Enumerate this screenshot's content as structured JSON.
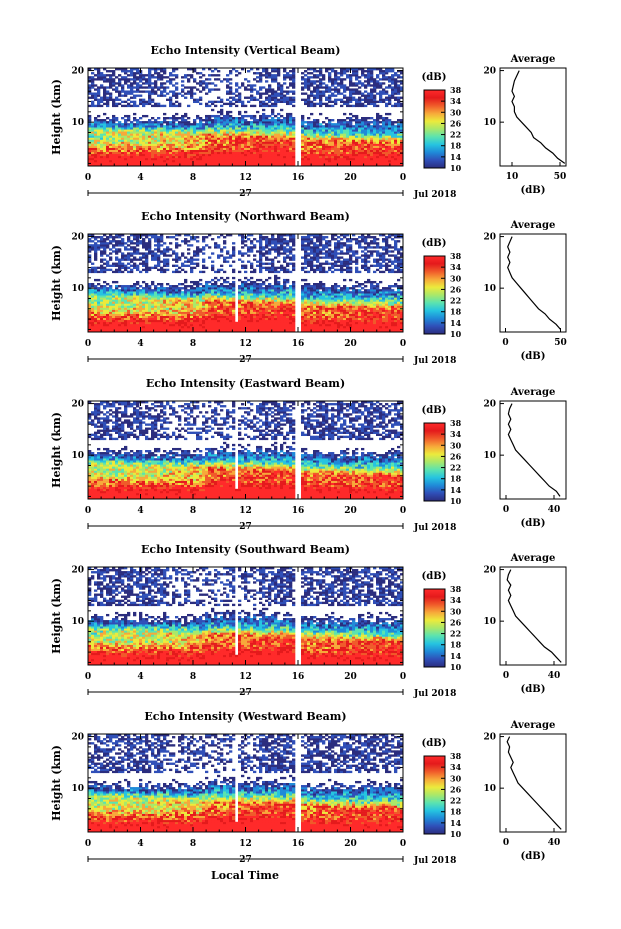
{
  "figure": {
    "xlabel": "Local Time",
    "date_label": "Jul 2018",
    "day_label": "27",
    "colorbar_unit": "(dB)",
    "avg_title": "Average",
    "avg_xlabel": "(dB)"
  },
  "colors": {
    "colormap": [
      "#2b2d7e",
      "#2f4fb8",
      "#1f8ad8",
      "#26c4e0",
      "#5be3b0",
      "#a9e86a",
      "#ecea3c",
      "#f7a83a",
      "#f05a2a",
      "#e41a1c",
      "#ff2a2a"
    ],
    "background": "#ffffff"
  },
  "chart_data": [
    {
      "type": "heatmap",
      "title": "Echo Intensity (Vertical Beam)",
      "ylabel": "Height (km)",
      "xlabel": "Local Time",
      "x_ticks": [
        "0",
        "4",
        "8",
        "12",
        "16",
        "20",
        "0"
      ],
      "xlim": [
        0,
        24
      ],
      "y_ticks": [
        "10",
        "20"
      ],
      "ylim": [
        1.5,
        20.5
      ],
      "colorbar_ticks": [
        "10",
        "14",
        "18",
        "22",
        "26",
        "30",
        "34",
        "38"
      ],
      "colorbar_range": [
        10,
        38
      ],
      "gaps_hours": [
        16.0
      ],
      "average_profile": {
        "title": "Average",
        "xlabel": "(dB)",
        "x_ticks": [
          "10",
          "50"
        ],
        "x_tick_values": [
          10,
          50
        ],
        "xlim": [
          0,
          55
        ],
        "y_ticks": [
          "10",
          "20"
        ],
        "heights_km": [
          2,
          3,
          4,
          5,
          6,
          7,
          8,
          9,
          10,
          11,
          12,
          13,
          14,
          15,
          16,
          17,
          18,
          19,
          20
        ],
        "values_db": [
          54,
          48,
          44,
          38,
          34,
          28,
          26,
          22,
          18,
          14,
          12,
          12,
          10,
          12,
          10,
          11,
          12,
          14,
          16
        ]
      }
    },
    {
      "type": "heatmap",
      "title": "Echo Intensity (Northward Beam)",
      "ylabel": "Height (km)",
      "xlabel": "Local Time",
      "x_ticks": [
        "0",
        "4",
        "8",
        "12",
        "16",
        "20",
        "0"
      ],
      "xlim": [
        0,
        24
      ],
      "y_ticks": [
        "10",
        "20"
      ],
      "ylim": [
        1.5,
        20.5
      ],
      "colorbar_ticks": [
        "10",
        "14",
        "18",
        "22",
        "26",
        "30",
        "34",
        "38"
      ],
      "colorbar_range": [
        10,
        38
      ],
      "gaps_hours": [
        11.3,
        16.0
      ],
      "average_profile": {
        "title": "Average",
        "xlabel": "(dB)",
        "x_ticks": [
          "0",
          "50"
        ],
        "x_tick_values": [
          0,
          50
        ],
        "xlim": [
          -5,
          55
        ],
        "y_ticks": [
          "10",
          "20"
        ],
        "heights_km": [
          2,
          3,
          4,
          5,
          6,
          7,
          8,
          9,
          10,
          11,
          12,
          13,
          14,
          15,
          16,
          17,
          18,
          19,
          20
        ],
        "values_db": [
          50,
          46,
          40,
          36,
          30,
          26,
          22,
          18,
          14,
          10,
          6,
          4,
          2,
          4,
          2,
          4,
          2,
          4,
          6
        ]
      }
    },
    {
      "type": "heatmap",
      "title": "Echo Intensity (Eastward Beam)",
      "ylabel": "Height (km)",
      "xlabel": "Local Time",
      "x_ticks": [
        "0",
        "4",
        "8",
        "12",
        "16",
        "20",
        "0"
      ],
      "xlim": [
        0,
        24
      ],
      "y_ticks": [
        "10",
        "20"
      ],
      "ylim": [
        1.5,
        20.5
      ],
      "colorbar_ticks": [
        "10",
        "14",
        "18",
        "22",
        "26",
        "30",
        "34",
        "38"
      ],
      "colorbar_range": [
        10,
        38
      ],
      "gaps_hours": [
        11.3,
        16.0
      ],
      "average_profile": {
        "title": "Average",
        "xlabel": "(dB)",
        "x_ticks": [
          "0",
          "40"
        ],
        "x_tick_values": [
          0,
          40
        ],
        "xlim": [
          -5,
          50
        ],
        "y_ticks": [
          "10",
          "20"
        ],
        "heights_km": [
          2,
          3,
          4,
          5,
          6,
          7,
          8,
          9,
          10,
          11,
          12,
          13,
          14,
          15,
          16,
          17,
          18,
          19,
          20
        ],
        "values_db": [
          45,
          42,
          36,
          32,
          28,
          24,
          20,
          16,
          12,
          8,
          6,
          4,
          2,
          4,
          2,
          4,
          2,
          3,
          5
        ]
      }
    },
    {
      "type": "heatmap",
      "title": "Echo Intensity (Southward Beam)",
      "ylabel": "Height (km)",
      "xlabel": "Local Time",
      "x_ticks": [
        "0",
        "4",
        "8",
        "12",
        "16",
        "20",
        "0"
      ],
      "xlim": [
        0,
        24
      ],
      "y_ticks": [
        "10",
        "20"
      ],
      "ylim": [
        1.5,
        20.5
      ],
      "colorbar_ticks": [
        "10",
        "14",
        "18",
        "22",
        "26",
        "30",
        "34",
        "38"
      ],
      "colorbar_range": [
        10,
        38
      ],
      "gaps_hours": [
        11.3,
        16.0
      ],
      "average_profile": {
        "title": "Average",
        "xlabel": "(dB)",
        "x_ticks": [
          "0",
          "40"
        ],
        "x_tick_values": [
          0,
          40
        ],
        "xlim": [
          -5,
          50
        ],
        "y_ticks": [
          "10",
          "20"
        ],
        "heights_km": [
          2,
          3,
          4,
          5,
          6,
          7,
          8,
          9,
          10,
          11,
          12,
          13,
          14,
          15,
          16,
          17,
          18,
          19,
          20
        ],
        "values_db": [
          46,
          42,
          38,
          32,
          28,
          24,
          20,
          16,
          12,
          8,
          6,
          4,
          2,
          4,
          2,
          4,
          1,
          2,
          4
        ]
      }
    },
    {
      "type": "heatmap",
      "title": "Echo Intensity (Westward Beam)",
      "ylabel": "Height (km)",
      "xlabel": "Local Time",
      "x_ticks": [
        "0",
        "4",
        "8",
        "12",
        "16",
        "20",
        "0"
      ],
      "xlim": [
        0,
        24
      ],
      "y_ticks": [
        "10",
        "20"
      ],
      "ylim": [
        1.5,
        20.5
      ],
      "colorbar_ticks": [
        "10",
        "14",
        "18",
        "22",
        "26",
        "30",
        "34",
        "38"
      ],
      "colorbar_range": [
        10,
        38
      ],
      "gaps_hours": [
        11.3,
        16.0
      ],
      "average_profile": {
        "title": "Average",
        "xlabel": "(dB)",
        "x_ticks": [
          "0",
          "40"
        ],
        "x_tick_values": [
          0,
          40
        ],
        "xlim": [
          -5,
          50
        ],
        "y_ticks": [
          "10",
          "20"
        ],
        "heights_km": [
          2,
          3,
          4,
          5,
          6,
          7,
          8,
          9,
          10,
          11,
          12,
          13,
          14,
          15,
          16,
          17,
          18,
          19,
          20
        ],
        "values_db": [
          46,
          42,
          38,
          34,
          30,
          26,
          22,
          18,
          14,
          10,
          8,
          6,
          4,
          6,
          4,
          2,
          3,
          1,
          3
        ]
      }
    }
  ]
}
